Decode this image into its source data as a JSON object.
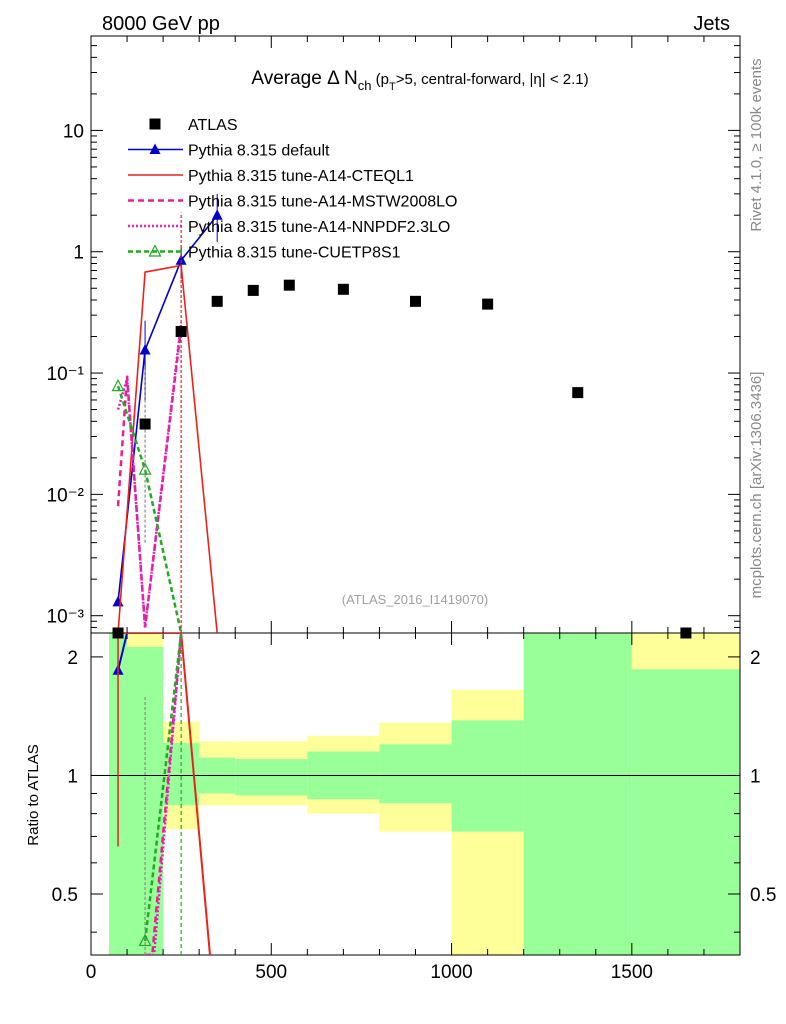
{
  "header": {
    "left_label": "8000 GeV pp",
    "right_label": "Jets"
  },
  "side_labels": {
    "rivet": "Rivet 4.1.0, ≥ 100k events",
    "mcplots": "mcplots.cern.ch [arXiv:1306.3436]"
  },
  "watermark": "(ATLAS_2016_I1419070)",
  "chart_data": {
    "type": "line",
    "title_parts": {
      "main": "Average Δ N",
      "sub": "ch",
      "rest_open": " (p",
      "sub2": "T",
      "rest_close": ">5, central-forward, |η| < 2.1)"
    },
    "xlabel": "",
    "ylabel_ratio": "Ratio to ATLAS",
    "xlim": [
      0,
      1800
    ],
    "ylim_main": [
      0.00072,
      60
    ],
    "ylim_ratio": [
      0.35,
      2.3
    ],
    "x_ticks": [
      0,
      500,
      1000,
      1500
    ],
    "x_tick_labels": [
      "0",
      "500",
      "1000",
      "1500"
    ],
    "y_main_ticks": [
      0.001,
      0.01,
      0.1,
      1,
      10
    ],
    "y_main_tick_labels": [
      "10⁻³",
      "10⁻²",
      "10⁻¹",
      "1",
      "10"
    ],
    "y_ratio_ticks": [
      0.5,
      1,
      2
    ],
    "y_ratio_tick_labels": [
      "0.5",
      "1",
      "2"
    ],
    "legend": [
      {
        "label": "ATLAS",
        "color": "#000000",
        "marker": "square",
        "dash": ""
      },
      {
        "label": "Pythia 8.315 default",
        "color": "#0000cc",
        "marker": "triangle",
        "dash": ""
      },
      {
        "label": "Pythia 8.315 tune-A14-CTEQL1",
        "color": "#e8231a",
        "marker": "none",
        "dash": ""
      },
      {
        "label": "Pythia 8.315 tune-A14-MSTW2008LO",
        "color": "#e6208f",
        "marker": "none",
        "dash": "6,4"
      },
      {
        "label": "Pythia 8.315 tune-A14-NNPDF2.3LO",
        "color": "#e020c0",
        "marker": "none",
        "dash": "2,2"
      },
      {
        "label": "Pythia 8.315 tune-CUETP8S1",
        "color": "#22aa22",
        "marker": "open-triangle",
        "dash": "5,3"
      }
    ],
    "atlas": {
      "x": [
        75,
        150,
        250,
        350,
        450,
        550,
        700,
        900,
        1100,
        1350,
        1650
      ],
      "y": [
        0.0007,
        0.038,
        0.22,
        0.39,
        0.48,
        0.53,
        0.49,
        0.39,
        0.37,
        0.069,
        0.0007
      ]
    },
    "bands": [
      {
        "x0": 50,
        "x1": 100,
        "y_lo": 0.35,
        "y_hi": 2.3,
        "g_lo": 0.35,
        "g_hi": 2.3
      },
      {
        "x0": 100,
        "x1": 200,
        "y_lo": 0.35,
        "y_hi": 2.3,
        "g_lo": 0.35,
        "g_hi": 2.12
      },
      {
        "x0": 200,
        "x1": 300,
        "y_lo": 0.73,
        "y_hi": 1.37,
        "g_lo": 0.84,
        "g_hi": 1.21
      },
      {
        "x0": 300,
        "x1": 400,
        "y_lo": 0.84,
        "y_hi": 1.22,
        "g_lo": 0.9,
        "g_hi": 1.11
      },
      {
        "x0": 400,
        "x1": 600,
        "y_lo": 0.84,
        "y_hi": 1.22,
        "g_lo": 0.89,
        "g_hi": 1.1
      },
      {
        "x0": 600,
        "x1": 800,
        "y_lo": 0.8,
        "y_hi": 1.26,
        "g_lo": 0.87,
        "g_hi": 1.15
      },
      {
        "x0": 800,
        "x1": 1000,
        "y_lo": 0.72,
        "y_hi": 1.36,
        "g_lo": 0.85,
        "g_hi": 1.2
      },
      {
        "x0": 1000,
        "x1": 1200,
        "y_lo": 0.35,
        "y_hi": 1.65,
        "g_lo": 0.72,
        "g_hi": 1.38
      },
      {
        "x0": 1200,
        "x1": 1500,
        "y_lo": 0.35,
        "y_hi": 2.3,
        "g_lo": 0.35,
        "g_hi": 2.3
      },
      {
        "x0": 1500,
        "x1": 1800,
        "y_lo": 0.35,
        "y_hi": 2.3,
        "g_lo": 0.35,
        "g_hi": 1.86
      }
    ],
    "series_main": [
      {
        "name": "default",
        "color": "#0000cc",
        "dash": "",
        "marker": "triangle",
        "x": [
          75,
          150,
          250,
          350
        ],
        "y": [
          0.0013,
          0.155,
          0.85,
          2.0
        ],
        "err": [
          [
            0.06,
            0.27
          ],
          [
            0.6,
            1.1
          ],
          [
            1.2,
            3.0
          ]
        ],
        "err_x": [
          150,
          250,
          350
        ]
      },
      {
        "name": "A14-CTEQL1",
        "color": "#e8231a",
        "dash": "",
        "marker": "none",
        "x": [
          75,
          150,
          250,
          350
        ],
        "y": [
          0.0007,
          0.68,
          0.77,
          0.0007
        ],
        "err": [],
        "err_x": []
      },
      {
        "name": "A14-MSTW2008LO",
        "color": "#e6208f",
        "dash": "6,4",
        "marker": "none",
        "x": [
          75,
          100,
          150,
          250
        ],
        "y": [
          0.008,
          0.095,
          0.0008,
          0.24
        ],
        "err": [],
        "err_x": []
      },
      {
        "name": "A14-NNPDF2.3LO",
        "color": "#e020c0",
        "dash": "2,2",
        "marker": "none",
        "x": [
          75,
          100,
          150,
          250
        ],
        "y": [
          0.05,
          0.09,
          0.0008,
          0.26
        ],
        "err": [],
        "err_x": []
      },
      {
        "name": "CUETP8S1",
        "color": "#22aa22",
        "dash": "5,3",
        "marker": "open-triangle",
        "x": [
          75,
          150,
          250
        ],
        "y": [
          0.078,
          0.016,
          0.0007
        ],
        "err": [],
        "err_x": []
      }
    ],
    "series_ratio": [
      {
        "name": "default",
        "color": "#0000cc",
        "dash": "",
        "marker": "triangle",
        "x": [
          75,
          100
        ],
        "y": [
          1.85,
          2.3
        ]
      },
      {
        "name": "A14-CTEQL1",
        "color": "#e8231a",
        "dash": "",
        "marker": "none",
        "x": [
          75,
          100,
          250,
          330
        ],
        "y": [
          2.3,
          2.3,
          2.3,
          0.35
        ]
      },
      {
        "name": "A14-MSTW2008LO",
        "color": "#e6208f",
        "dash": "6,4",
        "marker": "none",
        "x": [
          150,
          170,
          250
        ],
        "y": [
          0.35,
          0.35,
          2.3
        ]
      },
      {
        "name": "A14-NNPDF2.3LO",
        "color": "#e020c0",
        "dash": "2,2",
        "marker": "none",
        "x": [
          150,
          175,
          250
        ],
        "y": [
          0.35,
          0.35,
          2.3
        ]
      },
      {
        "name": "CUETP8S1",
        "color": "#22aa22",
        "dash": "5,3",
        "marker": "open-triangle",
        "x": [
          150,
          250
        ],
        "y": [
          0.38,
          2.3
        ]
      }
    ]
  }
}
